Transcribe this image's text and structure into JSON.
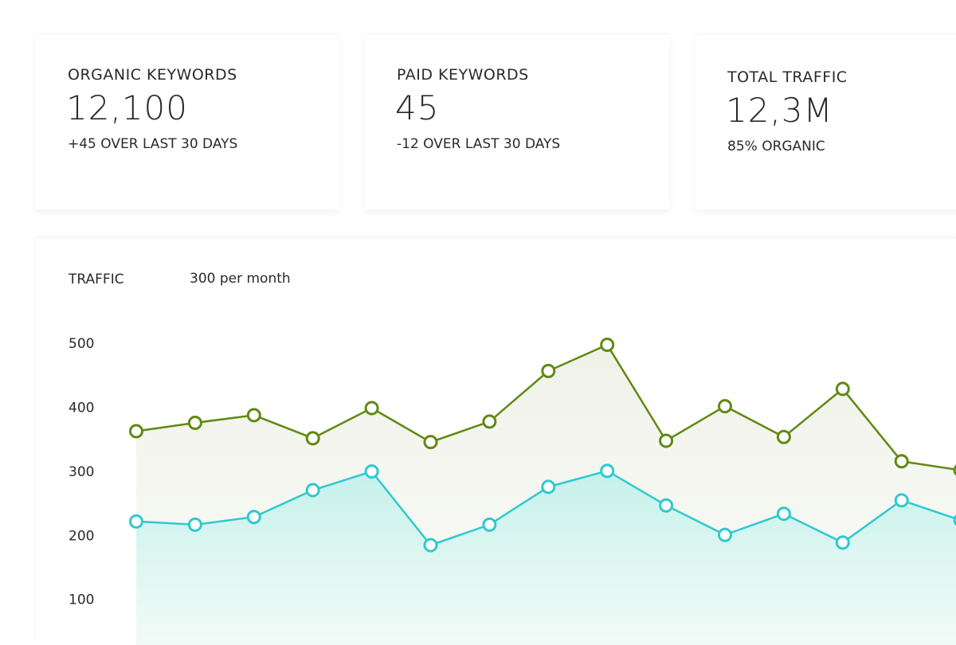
{
  "cards": [
    {
      "label": "ORGANIC KEYWORDS",
      "value": "12,100",
      "note": "+45 OVER LAST 30 DAYS"
    },
    {
      "label": "PAID KEYWORDS",
      "value": "45",
      "note": "-12 OVER LAST 30 DAYS"
    },
    {
      "label": "TOTAL TRAFFIC",
      "value": "12,3M",
      "note": "85% ORGANIC"
    }
  ],
  "chart_data": {
    "type": "line",
    "title": "TRAFFIC",
    "subtitle": "300 per month",
    "ylim": [
      30,
      540
    ],
    "yticks": [
      100,
      200,
      300,
      400,
      500
    ],
    "series": [
      {
        "color": "#5f8a12",
        "values": [
          364,
          377,
          389,
          353,
          400,
          347,
          379,
          458,
          499,
          349,
          403,
          355,
          430,
          317,
          303
        ]
      },
      {
        "color": "#2ec9d0",
        "values": [
          223,
          218,
          230,
          272,
          301,
          186,
          218,
          277,
          302,
          248,
          202,
          235,
          190,
          256,
          225
        ]
      }
    ]
  }
}
